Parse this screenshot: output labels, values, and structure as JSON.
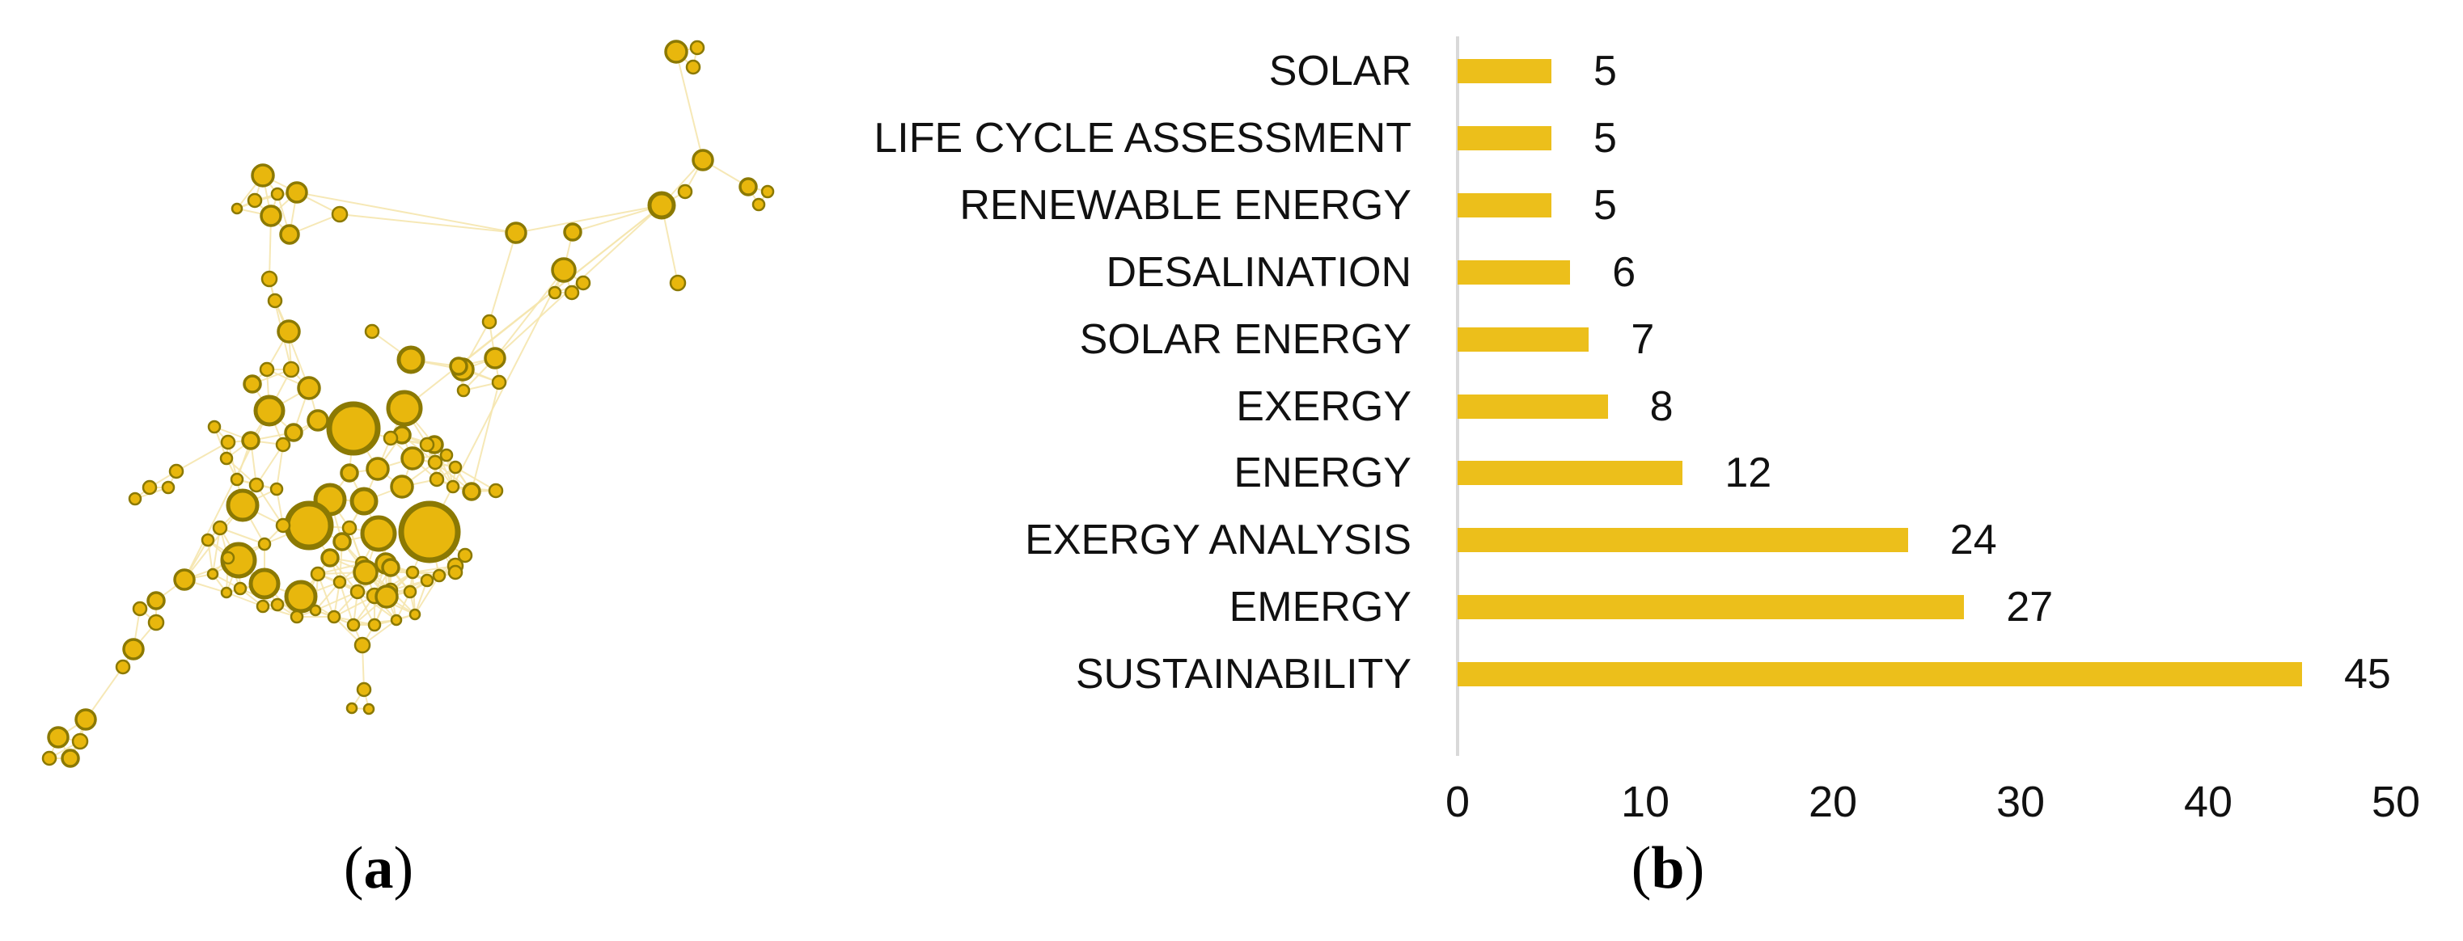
{
  "figure": {
    "panel_a": {
      "caption": {
        "open": "(",
        "letter": "a",
        "close": ")"
      },
      "network": {
        "node_fill": "#E8B70D",
        "node_stroke": "#8B7903",
        "edge_color": "#F5E6AE",
        "nodes": [
          [
            836,
            64,
            13
          ],
          [
            862,
            59,
            8
          ],
          [
            857,
            83,
            8
          ],
          [
            869,
            198,
            12
          ],
          [
            818,
            254,
            15
          ],
          [
            847,
            237,
            8
          ],
          [
            925,
            231,
            10
          ],
          [
            949,
            237,
            7
          ],
          [
            938,
            253,
            7
          ],
          [
            838,
            350,
            9
          ],
          [
            638,
            288,
            12
          ],
          [
            708,
            287,
            10
          ],
          [
            697,
            334,
            14
          ],
          [
            721,
            350,
            8
          ],
          [
            686,
            362,
            7
          ],
          [
            707,
            362,
            8
          ],
          [
            605,
            398,
            8
          ],
          [
            612,
            443,
            12
          ],
          [
            572,
            457,
            13
          ],
          [
            617,
            473,
            8
          ],
          [
            573,
            483,
            7
          ],
          [
            325,
            217,
            13
          ],
          [
            367,
            238,
            12
          ],
          [
            343,
            240,
            7
          ],
          [
            315,
            248,
            8
          ],
          [
            293,
            258,
            6
          ],
          [
            335,
            267,
            12
          ],
          [
            358,
            290,
            11
          ],
          [
            420,
            265,
            9
          ],
          [
            333,
            345,
            9
          ],
          [
            340,
            372,
            8
          ],
          [
            218,
            583,
            8
          ],
          [
            208,
            603,
            7
          ],
          [
            185,
            603,
            8
          ],
          [
            167,
            617,
            7
          ],
          [
            228,
            717,
            12
          ],
          [
            193,
            743,
            10
          ],
          [
            173,
            753,
            8
          ],
          [
            193,
            770,
            9
          ],
          [
            165,
            803,
            12
          ],
          [
            152,
            825,
            8
          ],
          [
            106,
            890,
            12
          ],
          [
            72,
            912,
            12
          ],
          [
            99,
            917,
            9
          ],
          [
            61,
            938,
            8
          ],
          [
            87,
            938,
            10
          ],
          [
            357,
            410,
            13
          ],
          [
            330,
            457,
            8
          ],
          [
            360,
            457,
            9
          ],
          [
            312,
            475,
            10
          ],
          [
            382,
            480,
            13
          ],
          [
            460,
            410,
            8
          ],
          [
            508,
            445,
            15
          ],
          [
            567,
            453,
            10
          ],
          [
            500,
            505,
            20
          ],
          [
            333,
            508,
            17
          ],
          [
            437,
            530,
            30
          ],
          [
            393,
            520,
            12
          ],
          [
            363,
            535,
            10
          ],
          [
            350,
            550,
            8
          ],
          [
            310,
            545,
            10
          ],
          [
            282,
            547,
            8
          ],
          [
            265,
            528,
            7
          ],
          [
            537,
            550,
            10
          ],
          [
            497,
            538,
            10
          ],
          [
            483,
            542,
            8
          ],
          [
            552,
            563,
            7
          ],
          [
            528,
            550,
            8
          ],
          [
            408,
            618,
            18
          ],
          [
            450,
            620,
            15
          ],
          [
            467,
            580,
            13
          ],
          [
            432,
            585,
            10
          ],
          [
            497,
            602,
            13
          ],
          [
            510,
            567,
            13
          ],
          [
            538,
            572,
            8
          ],
          [
            563,
            578,
            7
          ],
          [
            540,
            593,
            8
          ],
          [
            560,
            602,
            7
          ],
          [
            583,
            608,
            10
          ],
          [
            613,
            607,
            8
          ],
          [
            280,
            567,
            7
          ],
          [
            293,
            593,
            7
          ],
          [
            317,
            600,
            8
          ],
          [
            342,
            605,
            7
          ],
          [
            300,
            625,
            18
          ],
          [
            382,
            650,
            27
          ],
          [
            531,
            658,
            35
          ],
          [
            468,
            660,
            20
          ],
          [
            432,
            653,
            8
          ],
          [
            423,
            670,
            10
          ],
          [
            350,
            650,
            8
          ],
          [
            327,
            673,
            7
          ],
          [
            272,
            653,
            8
          ],
          [
            257,
            668,
            7
          ],
          [
            295,
            693,
            20
          ],
          [
            477,
            697,
            12
          ],
          [
            448,
            697,
            8
          ],
          [
            483,
            702,
            10
          ],
          [
            575,
            687,
            8
          ],
          [
            563,
            700,
            9
          ],
          [
            327,
            722,
            17
          ],
          [
            372,
            738,
            18
          ],
          [
            282,
            690,
            7
          ],
          [
            263,
            710,
            6
          ],
          [
            297,
            728,
            7
          ],
          [
            280,
            733,
            6
          ],
          [
            408,
            690,
            10
          ],
          [
            393,
            710,
            8
          ],
          [
            420,
            720,
            7
          ],
          [
            442,
            732,
            8
          ],
          [
            463,
            737,
            9
          ],
          [
            483,
            730,
            8
          ],
          [
            507,
            732,
            7
          ],
          [
            452,
            708,
            14
          ],
          [
            478,
            738,
            13
          ],
          [
            528,
            718,
            7
          ],
          [
            543,
            712,
            7
          ],
          [
            510,
            708,
            7
          ],
          [
            563,
            708,
            8
          ],
          [
            325,
            750,
            7
          ],
          [
            343,
            748,
            7
          ],
          [
            367,
            763,
            7
          ],
          [
            390,
            755,
            6
          ],
          [
            413,
            763,
            7
          ],
          [
            437,
            773,
            7
          ],
          [
            463,
            773,
            7
          ],
          [
            490,
            767,
            6
          ],
          [
            513,
            760,
            6
          ],
          [
            448,
            798,
            9
          ],
          [
            450,
            853,
            8
          ],
          [
            435,
            876,
            6
          ],
          [
            456,
            877,
            6
          ]
        ],
        "extra_edges": [
          [
            836,
            64,
            869,
            198
          ],
          [
            862,
            59,
            836,
            64
          ],
          [
            857,
            83,
            836,
            64
          ],
          [
            869,
            198,
            818,
            254
          ],
          [
            869,
            198,
            925,
            231
          ],
          [
            925,
            231,
            949,
            237
          ],
          [
            925,
            231,
            938,
            253
          ],
          [
            818,
            254,
            847,
            237
          ],
          [
            818,
            254,
            708,
            287
          ],
          [
            818,
            254,
            638,
            288
          ],
          [
            818,
            254,
            838,
            350
          ],
          [
            818,
            254,
            612,
            443
          ],
          [
            818,
            254,
            567,
            453
          ],
          [
            818,
            254,
            500,
            505
          ],
          [
            708,
            287,
            697,
            334
          ],
          [
            697,
            334,
            721,
            350
          ],
          [
            697,
            334,
            612,
            443
          ],
          [
            697,
            334,
            531,
            658
          ],
          [
            638,
            288,
            605,
            398
          ],
          [
            605,
            398,
            572,
            457
          ],
          [
            638,
            288,
            420,
            265
          ],
          [
            367,
            238,
            638,
            288
          ],
          [
            325,
            217,
            335,
            267
          ],
          [
            367,
            238,
            335,
            267
          ],
          [
            335,
            267,
            358,
            290
          ],
          [
            358,
            290,
            420,
            265
          ],
          [
            335,
            267,
            333,
            345
          ],
          [
            333,
            345,
            340,
            372
          ],
          [
            340,
            372,
            357,
            410
          ],
          [
            340,
            372,
            382,
            480
          ],
          [
            333,
            345,
            360,
            457
          ],
          [
            612,
            443,
            567,
            453
          ],
          [
            617,
            473,
            583,
            608
          ],
          [
            572,
            457,
            508,
            445
          ],
          [
            282,
            547,
            218,
            583
          ],
          [
            218,
            583,
            208,
            603
          ],
          [
            208,
            603,
            185,
            603
          ],
          [
            185,
            603,
            167,
            617
          ],
          [
            300,
            625,
            228,
            717
          ],
          [
            295,
            693,
            228,
            717
          ],
          [
            228,
            717,
            193,
            743
          ],
          [
            193,
            743,
            173,
            753
          ],
          [
            193,
            743,
            193,
            770
          ],
          [
            193,
            770,
            165,
            803
          ],
          [
            165,
            803,
            152,
            825
          ],
          [
            152,
            825,
            106,
            890
          ],
          [
            106,
            890,
            99,
            917
          ],
          [
            106,
            890,
            72,
            912
          ],
          [
            72,
            912,
            61,
            938
          ],
          [
            72,
            912,
            87,
            938
          ],
          [
            228,
            717,
            333,
            508
          ],
          [
            463,
            773,
            448,
            798
          ],
          [
            448,
            798,
            450,
            853
          ],
          [
            450,
            853,
            435,
            876
          ],
          [
            450,
            853,
            456,
            877
          ]
        ],
        "edge_rule_max_dist": 60
      }
    },
    "panel_b": {
      "caption": {
        "open": "(",
        "letter": "b",
        "close": ")"
      }
    }
  },
  "chart_data": {
    "type": "bar",
    "orientation": "horizontal",
    "title": "",
    "xlabel": "",
    "ylabel": "",
    "categories": [
      "SOLAR",
      "LIFE CYCLE ASSESSMENT",
      "RENEWABLE ENERGY",
      "DESALINATION",
      "SOLAR ENERGY",
      "EXERGY",
      "ENERGY",
      "EXERGY ANALYSIS",
      "EMERGY",
      "SUSTAINABILITY"
    ],
    "values": [
      5,
      5,
      5,
      6,
      7,
      8,
      12,
      24,
      27,
      45
    ],
    "value_labels": [
      "5",
      "5",
      "5",
      "6",
      "7",
      "8",
      "12",
      "24",
      "27",
      "45"
    ],
    "xlim": [
      0,
      50
    ],
    "xticks": [
      0,
      10,
      20,
      30,
      40,
      50
    ],
    "bar_color": "#ECBF1B",
    "axis_line_color": "#D9D9D9",
    "grid": false,
    "legend": false
  }
}
